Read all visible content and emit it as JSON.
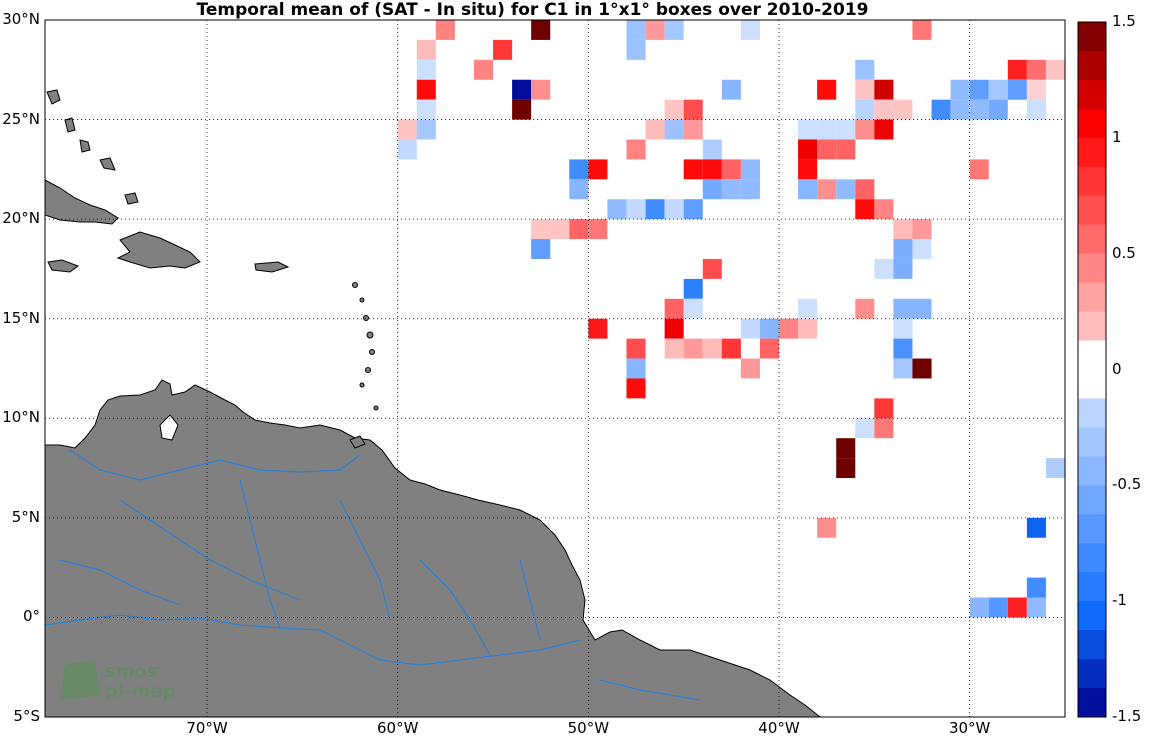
{
  "title": "Temporal mean of (SAT - In situ) for C1 in 1°x1° boxes over 2010-2019",
  "logo": {
    "line1": "smos",
    "line2": "pi-mep"
  },
  "map": {
    "projection": "equirectangular",
    "lon_range": [
      -78.5,
      -25
    ],
    "lat_range": [
      -5,
      30
    ],
    "land_color": "#808080",
    "river_color": "#2a7fd4",
    "coast_color": "#000000",
    "grid": "dotted"
  },
  "x_ticks": [
    {
      "lon": -70,
      "label": "70°W"
    },
    {
      "lon": -60,
      "label": "60°W"
    },
    {
      "lon": -50,
      "label": "50°W"
    },
    {
      "lon": -40,
      "label": "40°W"
    },
    {
      "lon": -30,
      "label": "30°W"
    }
  ],
  "y_ticks": [
    {
      "lat": 30,
      "label": "30°N"
    },
    {
      "lat": 25,
      "label": "25°N"
    },
    {
      "lat": 20,
      "label": "20°N"
    },
    {
      "lat": 15,
      "label": "15°N"
    },
    {
      "lat": 10,
      "label": "10°N"
    },
    {
      "lat": 5,
      "label": "5°N"
    },
    {
      "lat": 0,
      "label": "0°"
    },
    {
      "lat": -5,
      "label": "5°S"
    }
  ],
  "colorbar": {
    "min": -1.5,
    "max": 1.5,
    "ticks": [
      {
        "v": 1.5,
        "label": "1.5"
      },
      {
        "v": 1,
        "label": "1"
      },
      {
        "v": 0.5,
        "label": "0.5"
      },
      {
        "v": 0,
        "label": "0"
      },
      {
        "v": -0.5,
        "label": "-0.5"
      },
      {
        "v": -1,
        "label": "-1"
      },
      {
        "v": -1.5,
        "label": "-1.5"
      }
    ]
  },
  "chart_data": {
    "type": "heatmap",
    "title": "Temporal mean of (SAT - In situ) for C1 in 1°x1° boxes over 2010-2019",
    "value_range": [
      -1.5,
      1.5
    ],
    "cells": [
      {
        "lon": -58,
        "lat": 29,
        "v": 0.45
      },
      {
        "lon": -53,
        "lat": 29,
        "v": 1.5
      },
      {
        "lon": -48,
        "lat": 29,
        "v": -0.35
      },
      {
        "lon": -47,
        "lat": 29,
        "v": 0.35
      },
      {
        "lon": -46,
        "lat": 29,
        "v": -0.3
      },
      {
        "lon": -42,
        "lat": 29,
        "v": -0.1
      },
      {
        "lon": -33,
        "lat": 29,
        "v": 0.5
      },
      {
        "lon": -59,
        "lat": 28,
        "v": 0.2
      },
      {
        "lon": -55,
        "lat": 28,
        "v": 0.8
      },
      {
        "lon": -48,
        "lat": 28,
        "v": -0.35
      },
      {
        "lon": -59,
        "lat": 27,
        "v": -0.1
      },
      {
        "lon": -56,
        "lat": 27,
        "v": 0.45
      },
      {
        "lon": -36,
        "lat": 27,
        "v": -0.35
      },
      {
        "lon": -28,
        "lat": 27,
        "v": 0.9
      },
      {
        "lon": -27,
        "lat": 27,
        "v": 0.55
      },
      {
        "lon": -26,
        "lat": 27,
        "v": 0.15
      },
      {
        "lon": -59,
        "lat": 26,
        "v": 1.0
      },
      {
        "lon": -54,
        "lat": 26,
        "v": -1.45
      },
      {
        "lon": -53,
        "lat": 26,
        "v": 0.4
      },
      {
        "lon": -43,
        "lat": 26,
        "v": -0.45
      },
      {
        "lon": -38,
        "lat": 26,
        "v": 1.0
      },
      {
        "lon": -36,
        "lat": 26,
        "v": 0.15
      },
      {
        "lon": -35,
        "lat": 26,
        "v": 1.2
      },
      {
        "lon": -31,
        "lat": 26,
        "v": -0.4
      },
      {
        "lon": -30,
        "lat": 26,
        "v": -0.65
      },
      {
        "lon": -29,
        "lat": 26,
        "v": -0.3
      },
      {
        "lon": -28,
        "lat": 26,
        "v": -0.65
      },
      {
        "lon": -27,
        "lat": 26,
        "v": 0.1
      },
      {
        "lon": -59,
        "lat": 25,
        "v": -0.1
      },
      {
        "lon": -54,
        "lat": 25,
        "v": 1.5
      },
      {
        "lon": -46,
        "lat": 25,
        "v": 0.15
      },
      {
        "lon": -45,
        "lat": 25,
        "v": 0.7
      },
      {
        "lon": -36,
        "lat": 25,
        "v": -0.2
      },
      {
        "lon": -35,
        "lat": 25,
        "v": 0.15
      },
      {
        "lon": -34,
        "lat": 25,
        "v": 0.15
      },
      {
        "lon": -32,
        "lat": 25,
        "v": -0.8
      },
      {
        "lon": -31,
        "lat": 25,
        "v": -0.4
      },
      {
        "lon": -30,
        "lat": 25,
        "v": -0.4
      },
      {
        "lon": -29,
        "lat": 25,
        "v": -0.55
      },
      {
        "lon": -27,
        "lat": 25,
        "v": -0.1
      },
      {
        "lon": -60,
        "lat": 24,
        "v": 0.15
      },
      {
        "lon": -59,
        "lat": 24,
        "v": -0.3
      },
      {
        "lon": -47,
        "lat": 24,
        "v": 0.2
      },
      {
        "lon": -46,
        "lat": 24,
        "v": -0.35
      },
      {
        "lon": -45,
        "lat": 24,
        "v": 0.35
      },
      {
        "lon": -39,
        "lat": 24,
        "v": -0.1
      },
      {
        "lon": -38,
        "lat": 24,
        "v": -0.1
      },
      {
        "lon": -37,
        "lat": 24,
        "v": -0.1
      },
      {
        "lon": -36,
        "lat": 24,
        "v": 0.4
      },
      {
        "lon": -35,
        "lat": 24,
        "v": 1.1
      },
      {
        "lon": -60,
        "lat": 23,
        "v": -0.15
      },
      {
        "lon": -48,
        "lat": 23,
        "v": 0.45
      },
      {
        "lon": -44,
        "lat": 23,
        "v": -0.25
      },
      {
        "lon": -39,
        "lat": 23,
        "v": 1.1
      },
      {
        "lon": -38,
        "lat": 23,
        "v": 0.6
      },
      {
        "lon": -37,
        "lat": 23,
        "v": 0.6
      },
      {
        "lon": -51,
        "lat": 22,
        "v": -0.8
      },
      {
        "lon": -50,
        "lat": 22,
        "v": 1.0
      },
      {
        "lon": -45,
        "lat": 22,
        "v": 1.0
      },
      {
        "lon": -44,
        "lat": 22,
        "v": 1.0
      },
      {
        "lon": -43,
        "lat": 22,
        "v": 0.6
      },
      {
        "lon": -42,
        "lat": 22,
        "v": -0.4
      },
      {
        "lon": -39,
        "lat": 22,
        "v": 1.0
      },
      {
        "lon": -30,
        "lat": 22,
        "v": 0.5
      },
      {
        "lon": -51,
        "lat": 21,
        "v": -0.45
      },
      {
        "lon": -44,
        "lat": 21,
        "v": -0.55
      },
      {
        "lon": -43,
        "lat": 21,
        "v": -0.4
      },
      {
        "lon": -42,
        "lat": 21,
        "v": -0.4
      },
      {
        "lon": -39,
        "lat": 21,
        "v": -0.45
      },
      {
        "lon": -38,
        "lat": 21,
        "v": 0.4
      },
      {
        "lon": -37,
        "lat": 21,
        "v": -0.4
      },
      {
        "lon": -36,
        "lat": 21,
        "v": 0.6
      },
      {
        "lon": -49,
        "lat": 20,
        "v": -0.4
      },
      {
        "lon": -48,
        "lat": 20,
        "v": -0.15
      },
      {
        "lon": -47,
        "lat": 20,
        "v": -0.8
      },
      {
        "lon": -46,
        "lat": 20,
        "v": -0.15
      },
      {
        "lon": -45,
        "lat": 20,
        "v": -0.65
      },
      {
        "lon": -36,
        "lat": 20,
        "v": 1.0
      },
      {
        "lon": -35,
        "lat": 20,
        "v": 0.45
      },
      {
        "lon": -53,
        "lat": 19,
        "v": 0.15
      },
      {
        "lon": -52,
        "lat": 19,
        "v": 0.15
      },
      {
        "lon": -51,
        "lat": 19,
        "v": 0.6
      },
      {
        "lon": -50,
        "lat": 19,
        "v": 0.5
      },
      {
        "lon": -34,
        "lat": 19,
        "v": 0.2
      },
      {
        "lon": -33,
        "lat": 19,
        "v": 0.35
      },
      {
        "lon": -53,
        "lat": 18,
        "v": -0.65
      },
      {
        "lon": -34,
        "lat": 18,
        "v": -0.5
      },
      {
        "lon": -33,
        "lat": 18,
        "v": -0.1
      },
      {
        "lon": -44,
        "lat": 17,
        "v": 0.7
      },
      {
        "lon": -35,
        "lat": 17,
        "v": -0.1
      },
      {
        "lon": -34,
        "lat": 17,
        "v": -0.5
      },
      {
        "lon": -45,
        "lat": 16,
        "v": -0.9
      },
      {
        "lon": -46,
        "lat": 15,
        "v": 0.6
      },
      {
        "lon": -45,
        "lat": 15,
        "v": -0.1
      },
      {
        "lon": -39,
        "lat": 15,
        "v": -0.1
      },
      {
        "lon": -36,
        "lat": 15,
        "v": 0.4
      },
      {
        "lon": -34,
        "lat": 15,
        "v": -0.45
      },
      {
        "lon": -33,
        "lat": 15,
        "v": -0.45
      },
      {
        "lon": -50,
        "lat": 14,
        "v": 0.95
      },
      {
        "lon": -46,
        "lat": 14,
        "v": 1.1
      },
      {
        "lon": -42,
        "lat": 14,
        "v": -0.15
      },
      {
        "lon": -41,
        "lat": 14,
        "v": -0.45
      },
      {
        "lon": -40,
        "lat": 14,
        "v": 0.45
      },
      {
        "lon": -39,
        "lat": 14,
        "v": 0.2
      },
      {
        "lon": -34,
        "lat": 14,
        "v": -0.1
      },
      {
        "lon": -48,
        "lat": 13,
        "v": 0.7
      },
      {
        "lon": -46,
        "lat": 13,
        "v": 0.2
      },
      {
        "lon": -45,
        "lat": 13,
        "v": 0.35
      },
      {
        "lon": -44,
        "lat": 13,
        "v": 0.2
      },
      {
        "lon": -43,
        "lat": 13,
        "v": 0.8
      },
      {
        "lon": -41,
        "lat": 13,
        "v": 0.6
      },
      {
        "lon": -34,
        "lat": 13,
        "v": -0.75
      },
      {
        "lon": -48,
        "lat": 12,
        "v": -0.45
      },
      {
        "lon": -42,
        "lat": 12,
        "v": 0.35
      },
      {
        "lon": -34,
        "lat": 12,
        "v": -0.3
      },
      {
        "lon": -33,
        "lat": 12,
        "v": 1.5
      },
      {
        "lon": -48,
        "lat": 11,
        "v": 1.0
      },
      {
        "lon": -35,
        "lat": 10,
        "v": 0.8
      },
      {
        "lon": -36,
        "lat": 9,
        "v": -0.1
      },
      {
        "lon": -35,
        "lat": 9,
        "v": 0.5
      },
      {
        "lon": -37,
        "lat": 8,
        "v": 1.5
      },
      {
        "lon": -26,
        "lat": 7,
        "v": -0.25
      },
      {
        "lon": -37,
        "lat": 7,
        "v": 1.5
      },
      {
        "lon": -38,
        "lat": 4,
        "v": 0.4
      },
      {
        "lon": -27,
        "lat": 4,
        "v": -1.1
      },
      {
        "lon": -27,
        "lat": 1,
        "v": -0.8
      },
      {
        "lon": -30,
        "lat": 0,
        "v": -0.45
      },
      {
        "lon": -29,
        "lat": 0,
        "v": -0.7
      },
      {
        "lon": -28,
        "lat": 0,
        "v": 0.9
      },
      {
        "lon": -27,
        "lat": 0,
        "v": -0.4
      },
      {
        "lon": -25,
        "lat": 0,
        "v": 0.45
      }
    ]
  }
}
